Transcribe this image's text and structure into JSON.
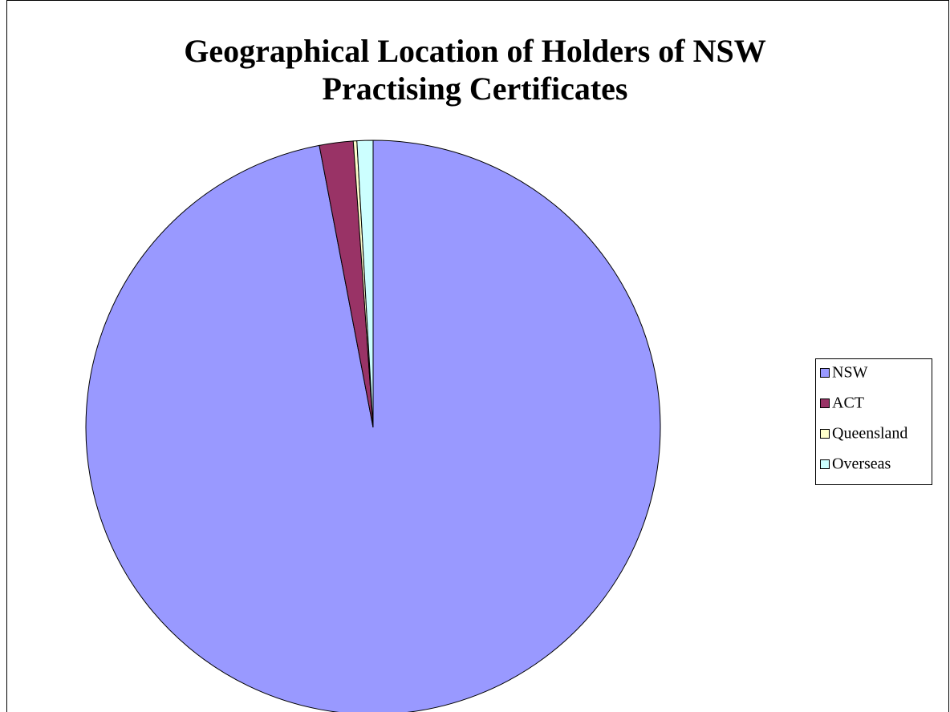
{
  "chart_data": {
    "type": "pie",
    "title": "Geographical Location of Holders of NSW Practising Certificates",
    "categories": [
      "NSW",
      "ACT",
      "Queensland",
      "Overseas"
    ],
    "values": [
      97,
      1.9,
      0.2,
      0.9
    ],
    "colors": [
      "#9999ff",
      "#993366",
      "#ffffcc",
      "#ccffff"
    ],
    "legend": "right"
  }
}
